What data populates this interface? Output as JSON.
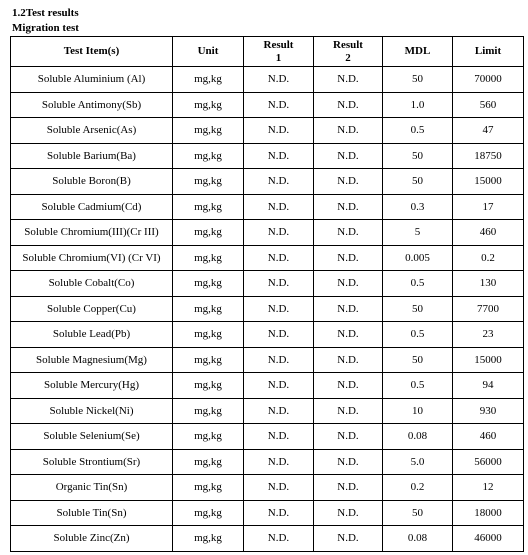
{
  "section_title": "1.2Test results",
  "subtitle": "Migration test",
  "table": {
    "header": [
      "Test Item(s)",
      "Unit",
      "Result\n1",
      "Result\n2",
      "MDL",
      "Limit"
    ],
    "rows": [
      [
        "Soluble Aluminium (Al)",
        "mg,kg",
        "N.D.",
        "N.D.",
        "50",
        "70000"
      ],
      [
        "Soluble Antimony(Sb)",
        "mg,kg",
        "N.D.",
        "N.D.",
        "1.0",
        "560"
      ],
      [
        "Soluble Arsenic(As)",
        "mg,kg",
        "N.D.",
        "N.D.",
        "0.5",
        "47"
      ],
      [
        "Soluble Barium(Ba)",
        "mg,kg",
        "N.D.",
        "N.D.",
        "50",
        "18750"
      ],
      [
        "Soluble Boron(B)",
        "mg,kg",
        "N.D.",
        "N.D.",
        "50",
        "15000"
      ],
      [
        "Soluble Cadmium(Cd)",
        "mg,kg",
        "N.D.",
        "N.D.",
        "0.3",
        "17"
      ],
      [
        "Soluble Chromium(III)(Cr III)",
        "mg,kg",
        "N.D.",
        "N.D.",
        "5",
        "460"
      ],
      [
        "Soluble Chromium(VI) (Cr VI)",
        "mg,kg",
        "N.D.",
        "N.D.",
        "0.005",
        "0.2"
      ],
      [
        "Soluble Cobalt(Co)",
        "mg,kg",
        "N.D.",
        "N.D.",
        "0.5",
        "130"
      ],
      [
        "Soluble Copper(Cu)",
        "mg,kg",
        "N.D.",
        "N.D.",
        "50",
        "7700"
      ],
      [
        "Soluble Lead(Pb)",
        "mg,kg",
        "N.D.",
        "N.D.",
        "0.5",
        "23"
      ],
      [
        "Soluble Magnesium(Mg)",
        "mg,kg",
        "N.D.",
        "N.D.",
        "50",
        "15000"
      ],
      [
        "Soluble Mercury(Hg)",
        "mg,kg",
        "N.D.",
        "N.D.",
        "0.5",
        "94"
      ],
      [
        "Soluble Nickel(Ni)",
        "mg,kg",
        "N.D.",
        "N.D.",
        "10",
        "930"
      ],
      [
        "Soluble Selenium(Se)",
        "mg,kg",
        "N.D.",
        "N.D.",
        "0.08",
        "460"
      ],
      [
        "Soluble Strontium(Sr)",
        "mg,kg",
        "N.D.",
        "N.D.",
        "5.0",
        "56000"
      ],
      [
        "Organic Tin(Sn)",
        "mg,kg",
        "N.D.",
        "N.D.",
        "0.2",
        "12"
      ],
      [
        "Soluble Tin(Sn)",
        "mg,kg",
        "N.D.",
        "N.D.",
        "50",
        "18000"
      ],
      [
        "Soluble Zinc(Zn)",
        "mg,kg",
        "N.D.",
        "N.D.",
        "0.08",
        "46000"
      ]
    ]
  }
}
